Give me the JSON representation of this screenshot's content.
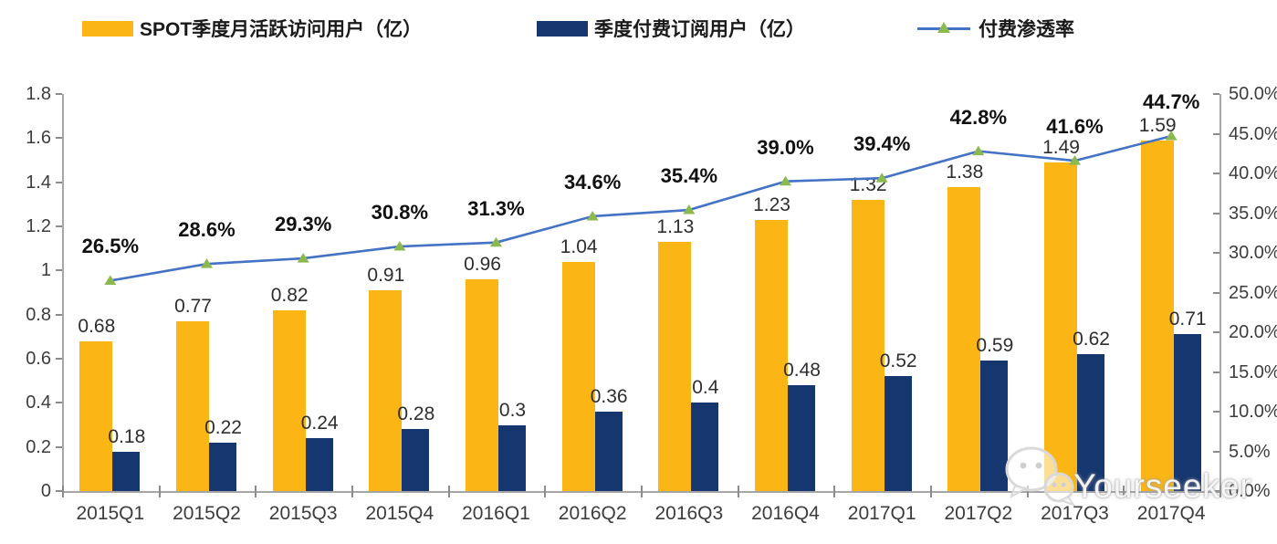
{
  "legend": [
    {
      "label": "SPOT季度月活跃访问用户（亿）",
      "swatch": "bar",
      "color": "#FBB615"
    },
    {
      "label": "季度付费订阅用户（亿）",
      "swatch": "bar",
      "color": "#16366F"
    },
    {
      "label": "付费渗透率",
      "swatch": "line",
      "color": "#4472C4",
      "marker_color": "#8CB850"
    }
  ],
  "watermark": {
    "text": "Yourseeker",
    "icon": "wechat-icon"
  },
  "colors": {
    "mau_bar": "#FBB615",
    "subs_bar": "#16366F",
    "penetration_line": "#4472C4",
    "penetration_marker": "#8CB850",
    "axis": "#a6a6a6"
  },
  "chart_data": {
    "type": "combo_bar_line",
    "title": "",
    "legend_position": "top",
    "grid": false,
    "categories": [
      "2015Q1",
      "2015Q2",
      "2015Q3",
      "2015Q4",
      "2016Q1",
      "2016Q2",
      "2016Q3",
      "2016Q4",
      "2017Q1",
      "2017Q2",
      "2017Q3",
      "2017Q4"
    ],
    "series": [
      {
        "name": "SPOT季度月活跃访问用户（亿）",
        "type": "bar",
        "axis": "left",
        "color": "#FBB615",
        "values": [
          0.68,
          0.77,
          0.82,
          0.91,
          0.96,
          1.04,
          1.13,
          1.23,
          1.32,
          1.38,
          1.49,
          1.59
        ],
        "labels": [
          "0.68",
          "0.77",
          "0.82",
          "0.91",
          "0.96",
          "1.04",
          "1.13",
          "1.23",
          "1.32",
          "1.38",
          "1.49",
          "1.59"
        ]
      },
      {
        "name": "季度付费订阅用户（亿）",
        "type": "bar",
        "axis": "left",
        "color": "#16366F",
        "values": [
          0.18,
          0.22,
          0.24,
          0.28,
          0.3,
          0.36,
          0.4,
          0.48,
          0.52,
          0.59,
          0.62,
          0.71
        ],
        "labels": [
          "0.18",
          "0.22",
          "0.24",
          "0.28",
          "0.3",
          "0.36",
          "0.4",
          "0.48",
          "0.52",
          "0.59",
          "0.62",
          "0.71"
        ]
      },
      {
        "name": "付费渗透率",
        "type": "line",
        "axis": "right",
        "color": "#4472C4",
        "marker": "triangle",
        "marker_color": "#8CB850",
        "values": [
          26.5,
          28.6,
          29.3,
          30.8,
          31.3,
          34.6,
          35.4,
          39.0,
          39.4,
          42.8,
          41.6,
          44.7
        ],
        "labels": [
          "26.5%",
          "28.6%",
          "29.3%",
          "30.8%",
          "31.3%",
          "34.6%",
          "35.4%",
          "39.0%",
          "39.4%",
          "42.8%",
          "41.6%",
          "44.7%"
        ]
      }
    ],
    "left_axis": {
      "min": 0,
      "max": 1.8,
      "step": 0.2,
      "ticks": [
        "0",
        "0.2",
        "0.4",
        "0.6",
        "0.8",
        "1",
        "1.2",
        "1.4",
        "1.6",
        "1.8"
      ]
    },
    "right_axis": {
      "min": 0,
      "max": 50,
      "step": 5,
      "ticks": [
        "0.0%",
        "5.0%",
        "10.0%",
        "15.0%",
        "20.0%",
        "25.0%",
        "30.0%",
        "35.0%",
        "40.0%",
        "45.0%",
        "50.0%"
      ]
    }
  }
}
